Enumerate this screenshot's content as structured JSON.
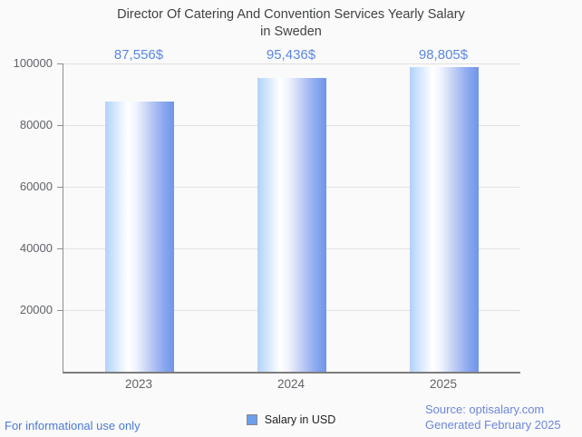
{
  "chart_data": {
    "type": "bar",
    "title": "Director Of Catering And Convention Services Yearly Salary in Sweden",
    "title_lines": [
      "Director Of Catering And Convention Services Yearly Salary",
      "in Sweden"
    ],
    "categories": [
      "2023",
      "2024",
      "2025"
    ],
    "values": [
      87556,
      95436,
      98805
    ],
    "value_labels": [
      "87,556$",
      "95,436$",
      "98,805$"
    ],
    "ylim": [
      0,
      100000
    ],
    "yticks": [
      20000,
      40000,
      60000,
      80000,
      100000
    ],
    "ytick_labels": [
      "20000",
      "40000",
      "60000",
      "80000",
      "100000"
    ],
    "grid": true,
    "legend_label": "Salary in USD",
    "legend_position": "bottom-center",
    "bar_gradient": [
      "#b1d2fc",
      "#ffffff",
      "#7095e8"
    ],
    "value_label_color": "#5b87e0",
    "legend_swatch_color": "#6d9eeb"
  },
  "footer": {
    "disclaimer": "For informational use only",
    "source": "Source: optisalary.com",
    "generated": "Generated February 2025"
  },
  "colors": {
    "background": "#fafafa",
    "title_text": "#3f4245",
    "axis_text": "#5f6368",
    "gridline": "#e2e2e2",
    "axis_line": "#8f8f8f",
    "value_text": "#5b87e0",
    "disclaimer_text": "#4c79d4",
    "source_text": "#6d87d9"
  }
}
